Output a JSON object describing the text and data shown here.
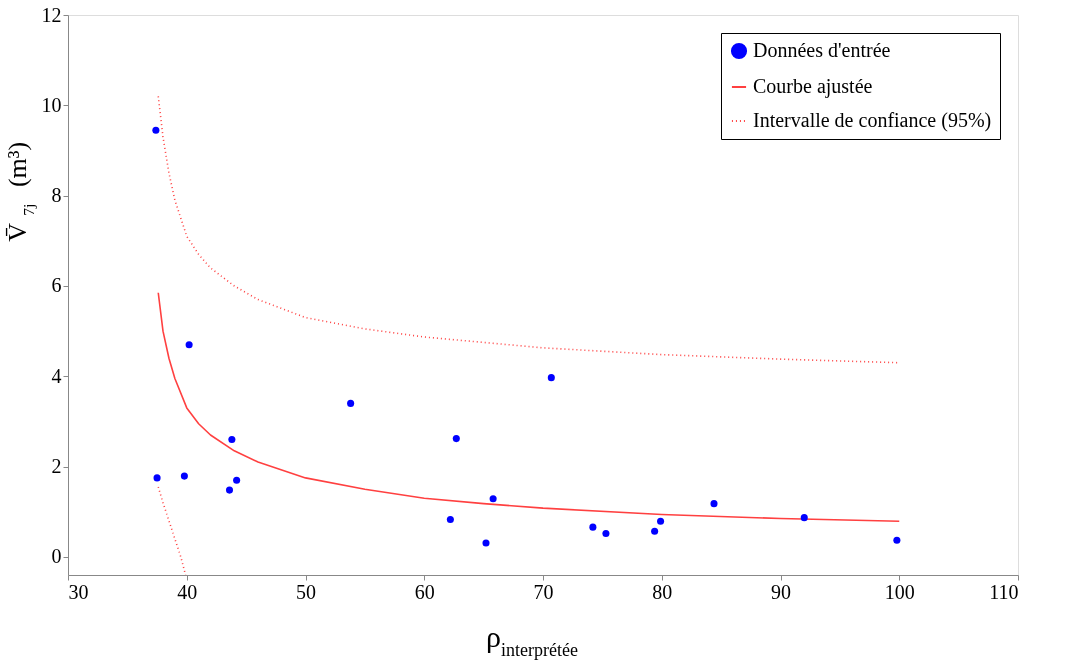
{
  "chart_data": {
    "type": "scatter",
    "xlabel": "ρ$_{interprétée}$",
    "ylabel": "V̄$_{7j}$ (m³)",
    "xlim": [
      30,
      110
    ],
    "ylim": [
      -0.4,
      12
    ],
    "xticks": [
      30,
      40,
      50,
      60,
      70,
      80,
      90,
      100,
      110
    ],
    "yticks": [
      0,
      2,
      4,
      6,
      8,
      10,
      12
    ],
    "grid": false,
    "legend": "top right",
    "series": [
      {
        "name": "Données d'entrée",
        "marker": "circle",
        "color": "#0000ff",
        "x": [
          37.4,
          37.5,
          39.8,
          40.2,
          43.6,
          43.8,
          44.2,
          53.8,
          62.2,
          62.7,
          65.2,
          65.8,
          70.7,
          74.2,
          75.3,
          79.4,
          79.9,
          84.4,
          92.0,
          99.8
        ],
        "values": [
          9.45,
          1.75,
          1.79,
          4.7,
          1.48,
          2.6,
          1.7,
          3.4,
          0.83,
          2.62,
          0.31,
          1.29,
          3.97,
          0.66,
          0.52,
          0.57,
          0.79,
          1.18,
          0.87,
          0.37
        ]
      },
      {
        "name": "Courbe ajustée",
        "type": "line",
        "line_style": "solid",
        "color": "#ff4040",
        "x": [
          37.6,
          38,
          38.5,
          39,
          40,
          41,
          42,
          44,
          46,
          50,
          55,
          60,
          65,
          70,
          80,
          90,
          100
        ],
        "values": [
          5.85,
          5.0,
          4.4,
          3.95,
          3.3,
          2.95,
          2.7,
          2.35,
          2.1,
          1.75,
          1.5,
          1.3,
          1.18,
          1.08,
          0.94,
          0.85,
          0.79
        ]
      },
      {
        "name": "Intervalle de confiance (95%)",
        "type": "line",
        "line_style": "dotted",
        "color": "#ff4040",
        "x": [
          37.6,
          38,
          38.5,
          39,
          40,
          41,
          42,
          44,
          46,
          50,
          55,
          60,
          70,
          80,
          90,
          100
        ],
        "values": [
          10.2,
          9.3,
          8.5,
          7.9,
          7.1,
          6.7,
          6.4,
          6.0,
          5.7,
          5.3,
          5.05,
          4.87,
          4.63,
          4.48,
          4.38,
          4.3
        ]
      },
      {
        "type": "line",
        "line_style": "dotted",
        "color": "#ff4040",
        "x": [
          37.6,
          38,
          38.5,
          39,
          39.5,
          39.9
        ],
        "values": [
          1.55,
          1.2,
          0.8,
          0.4,
          0.0,
          -0.4
        ]
      }
    ]
  }
}
